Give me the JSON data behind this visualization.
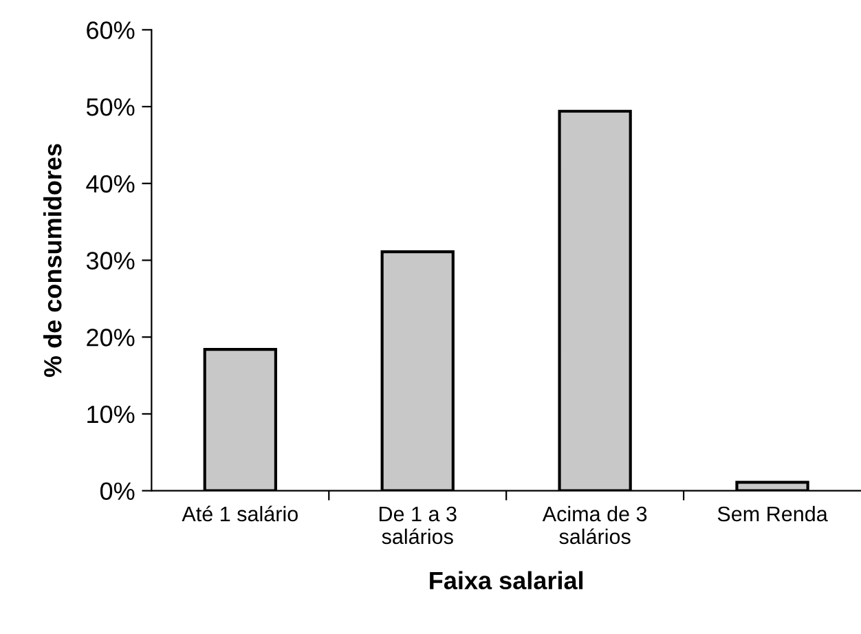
{
  "chart_data": {
    "type": "bar",
    "categories": [
      "Até 1 salário",
      "De 1 a 3\nsalários",
      "Acima de 3\nsalários",
      "Sem Renda"
    ],
    "values": [
      18.4,
      31.1,
      49.4,
      1.1
    ],
    "color": "#c8c8c8",
    "xlabel": "Faixa salarial",
    "ylabel": "% de consumidores",
    "ylim": [
      0,
      60
    ],
    "yticks": [
      {
        "value": 0,
        "label": "0%"
      },
      {
        "value": 10,
        "label": "10%"
      },
      {
        "value": 20,
        "label": "20%"
      },
      {
        "value": 30,
        "label": "30%"
      },
      {
        "value": 40,
        "label": "40%"
      },
      {
        "value": 50,
        "label": "50%"
      },
      {
        "value": 60,
        "label": "60%"
      }
    ],
    "grid": false,
    "legend": false
  }
}
